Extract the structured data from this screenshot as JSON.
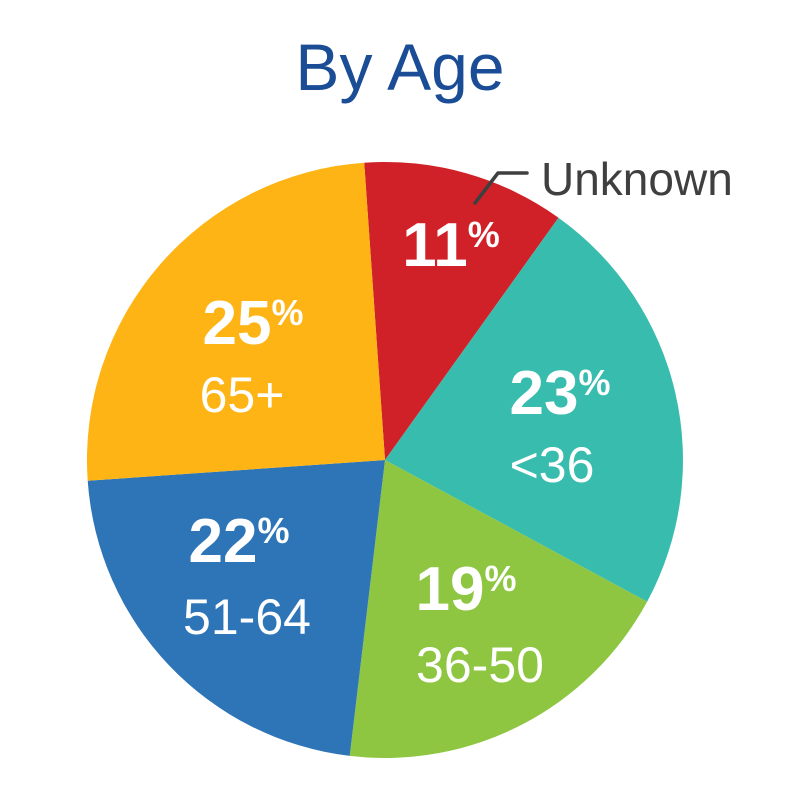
{
  "chart_data": {
    "type": "pie",
    "title": "By Age",
    "value_suffix": "%",
    "total": 100,
    "legend_position": "none",
    "slices": [
      {
        "label": "Unknown",
        "value": 11,
        "color": "#d02128",
        "label_placement": "outside-callout"
      },
      {
        "label": "<36",
        "value": 23,
        "color": "#38bcad",
        "label_placement": "inside"
      },
      {
        "label": "36-50",
        "value": 19,
        "color": "#8ec642",
        "label_placement": "inside"
      },
      {
        "label": "51-64",
        "value": 22,
        "color": "#2e75b8",
        "label_placement": "inside"
      },
      {
        "label": "65+",
        "value": 25,
        "color": "#fdb414",
        "label_placement": "inside"
      }
    ],
    "colors": {
      "title": "#1b4c96",
      "inside_labels": "#ffffff",
      "callout_text": "#3f3f3f"
    }
  }
}
